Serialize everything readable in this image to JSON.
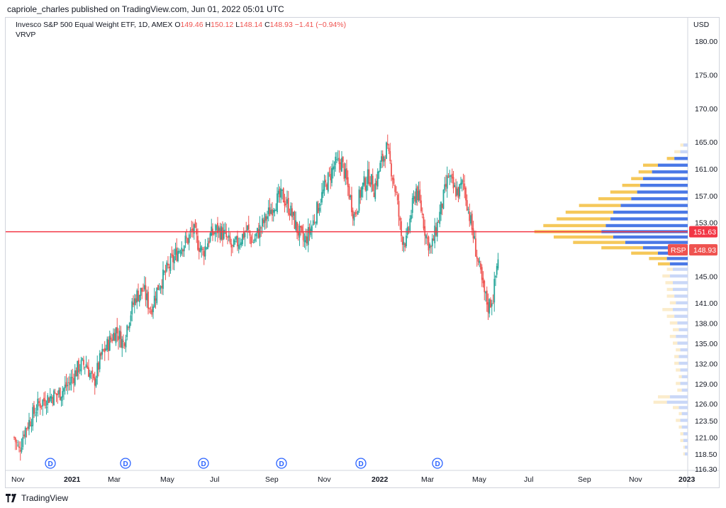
{
  "header": {
    "published_by": "capriole_charles published on TradingView.com, Jun 01, 2022 05:01 UTC"
  },
  "legend": {
    "symbol_desc": "Invesco S&P 500 Equal Weight ETF, 1D, AMEX",
    "o_label": "O",
    "o_value": "149.46",
    "h_label": "H",
    "h_value": "150.12",
    "l_label": "L",
    "l_value": "148.14",
    "c_label": "C",
    "c_value": "148.93",
    "change": "−1.41 (−0.94%)",
    "indicator": "VRVP"
  },
  "price_axis": {
    "currency": "USD",
    "ticks": [
      "180.00",
      "175.00",
      "170.00",
      "165.00",
      "161.00",
      "157.00",
      "153.00",
      "149.00",
      "145.00",
      "141.00",
      "138.00",
      "135.00",
      "132.00",
      "129.00",
      "126.00",
      "123.50",
      "121.00",
      "118.50",
      "116.30"
    ]
  },
  "time_axis": {
    "labels": [
      "Nov",
      "2021",
      "Mar",
      "May",
      "Jul",
      "Sep",
      "Nov",
      "2022",
      "Mar",
      "May",
      "Jul",
      "Sep",
      "Nov",
      "2023"
    ]
  },
  "badges": {
    "poc_price": "151.63",
    "symbol": "RSP",
    "last_price": "148.93"
  },
  "dividend_marker_label": "D",
  "footer": {
    "brand": "TradingView"
  },
  "colors": {
    "up": "#26a69a",
    "down": "#ef5350",
    "poc_line": "#f23645",
    "vp_up_va": "#4a78e6",
    "vp_down_va": "#f5c85a",
    "vp_up": "#c9d7f7",
    "vp_down": "#fbeccb"
  },
  "chart_data": {
    "type": "candlestick",
    "title": "Invesco S&P 500 Equal Weight ETF, 1D, AMEX",
    "ylabel": "USD",
    "ylim": [
      116.3,
      183.5
    ],
    "x_tick_labels": [
      "Nov",
      "2021",
      "Mar",
      "May",
      "Jul",
      "Sep",
      "Nov",
      "2022",
      "Mar",
      "May",
      "Jul",
      "Sep",
      "Nov",
      "2023"
    ],
    "price_path": [
      [
        0,
        121
      ],
      [
        2,
        119
      ],
      [
        4,
        122
      ],
      [
        7,
        124
      ],
      [
        10,
        126
      ],
      [
        14,
        127
      ],
      [
        18,
        127.5
      ],
      [
        22,
        129
      ],
      [
        26,
        131.5
      ],
      [
        29,
        132
      ],
      [
        32,
        129
      ],
      [
        35,
        133
      ],
      [
        38,
        135
      ],
      [
        41,
        137
      ],
      [
        44,
        135
      ],
      [
        46,
        138.5
      ],
      [
        49,
        142
      ],
      [
        52,
        143
      ],
      [
        55,
        140
      ],
      [
        58,
        143.5
      ],
      [
        61,
        145.5
      ],
      [
        64,
        147.5
      ],
      [
        67,
        149.5
      ],
      [
        70,
        150.5
      ],
      [
        72,
        152
      ],
      [
        74,
        150
      ],
      [
        76,
        148.5
      ],
      [
        79,
        151
      ],
      [
        82,
        152
      ],
      [
        85,
        151
      ],
      [
        88,
        149
      ],
      [
        91,
        150.5
      ],
      [
        94,
        152
      ],
      [
        96,
        150
      ],
      [
        99,
        152
      ],
      [
        102,
        154
      ],
      [
        105,
        156
      ],
      [
        108,
        157
      ],
      [
        111,
        155
      ],
      [
        114,
        152
      ],
      [
        117,
        150
      ],
      [
        120,
        152.5
      ],
      [
        123,
        156
      ],
      [
        126,
        159
      ],
      [
        129,
        161.5
      ],
      [
        132,
        162
      ],
      [
        134,
        159
      ],
      [
        137,
        154
      ],
      [
        140,
        158
      ],
      [
        143,
        160
      ],
      [
        145,
        158
      ],
      [
        148,
        162
      ],
      [
        150,
        164
      ],
      [
        152,
        161
      ],
      [
        154,
        157
      ],
      [
        156,
        151
      ],
      [
        158,
        150
      ],
      [
        160,
        154.5
      ],
      [
        162,
        158
      ],
      [
        164,
        155
      ],
      [
        166,
        151
      ],
      [
        168,
        149
      ],
      [
        170,
        152
      ],
      [
        172,
        155
      ],
      [
        175,
        160
      ],
      [
        177,
        158
      ],
      [
        179,
        157.5
      ],
      [
        181,
        159
      ],
      [
        183,
        155
      ],
      [
        185,
        151
      ],
      [
        187,
        147
      ],
      [
        189,
        143
      ],
      [
        191,
        140.5
      ],
      [
        193,
        142
      ],
      [
        195,
        148
      ]
    ],
    "volume_profile": {
      "poc": 151.63,
      "last": 148.93,
      "levels": [
        {
          "p": 164.5,
          "up": 0.03,
          "down": 0.02,
          "va": false
        },
        {
          "p": 163.5,
          "up": 0.05,
          "down": 0.04,
          "va": false
        },
        {
          "p": 162.5,
          "up": 0.09,
          "down": 0.05,
          "va": true
        },
        {
          "p": 161.5,
          "up": 0.2,
          "down": 0.1,
          "va": true
        },
        {
          "p": 160.5,
          "up": 0.24,
          "down": 0.09,
          "va": true
        },
        {
          "p": 159.5,
          "up": 0.3,
          "down": 0.08,
          "va": true
        },
        {
          "p": 158.5,
          "up": 0.32,
          "down": 0.12,
          "va": true
        },
        {
          "p": 157.5,
          "up": 0.34,
          "down": 0.18,
          "va": true
        },
        {
          "p": 156.5,
          "up": 0.38,
          "down": 0.22,
          "va": true
        },
        {
          "p": 155.5,
          "up": 0.45,
          "down": 0.28,
          "va": true
        },
        {
          "p": 154.5,
          "up": 0.5,
          "down": 0.32,
          "va": true
        },
        {
          "p": 153.5,
          "up": 0.52,
          "down": 0.36,
          "va": true
        },
        {
          "p": 152.5,
          "up": 0.55,
          "down": 0.42,
          "va": true
        },
        {
          "p": 151.6,
          "up": 0.58,
          "down": 0.45,
          "va": true
        },
        {
          "p": 150.8,
          "up": 0.5,
          "down": 0.4,
          "va": true
        },
        {
          "p": 150.0,
          "up": 0.42,
          "down": 0.35,
          "va": true
        },
        {
          "p": 149.2,
          "up": 0.3,
          "down": 0.28,
          "va": true
        },
        {
          "p": 148.4,
          "up": 0.2,
          "down": 0.18,
          "va": true
        },
        {
          "p": 147.6,
          "up": 0.14,
          "down": 0.12,
          "va": true
        },
        {
          "p": 146.8,
          "up": 0.12,
          "down": 0.08,
          "va": true
        },
        {
          "p": 146.0,
          "up": 0.1,
          "down": 0.04,
          "va": false
        },
        {
          "p": 145.0,
          "up": 0.12,
          "down": 0.05,
          "va": false
        },
        {
          "p": 144.0,
          "up": 0.1,
          "down": 0.05,
          "va": false
        },
        {
          "p": 143.0,
          "up": 0.1,
          "down": 0.04,
          "va": false
        },
        {
          "p": 142.0,
          "up": 0.09,
          "down": 0.05,
          "va": false
        },
        {
          "p": 141.0,
          "up": 0.08,
          "down": 0.04,
          "va": false
        },
        {
          "p": 140.0,
          "up": 0.1,
          "down": 0.07,
          "va": false
        },
        {
          "p": 139.0,
          "up": 0.09,
          "down": 0.05,
          "va": false
        },
        {
          "p": 138.0,
          "up": 0.07,
          "down": 0.05,
          "va": false
        },
        {
          "p": 137.0,
          "up": 0.06,
          "down": 0.04,
          "va": false
        },
        {
          "p": 136.0,
          "up": 0.08,
          "down": 0.04,
          "va": false
        },
        {
          "p": 135.0,
          "up": 0.07,
          "down": 0.03,
          "va": false
        },
        {
          "p": 134.0,
          "up": 0.05,
          "down": 0.03,
          "va": false
        },
        {
          "p": 133.0,
          "up": 0.06,
          "down": 0.03,
          "va": false
        },
        {
          "p": 132.0,
          "up": 0.06,
          "down": 0.03,
          "va": false
        },
        {
          "p": 131.0,
          "up": 0.05,
          "down": 0.03,
          "va": false
        },
        {
          "p": 130.0,
          "up": 0.04,
          "down": 0.02,
          "va": false
        },
        {
          "p": 129.0,
          "up": 0.05,
          "down": 0.03,
          "va": false
        },
        {
          "p": 128.0,
          "up": 0.04,
          "down": 0.03,
          "va": false
        },
        {
          "p": 127.0,
          "up": 0.12,
          "down": 0.08,
          "va": false
        },
        {
          "p": 126.2,
          "up": 0.14,
          "down": 0.09,
          "va": false
        },
        {
          "p": 125.4,
          "up": 0.06,
          "down": 0.04,
          "va": false
        },
        {
          "p": 124.5,
          "up": 0.04,
          "down": 0.02,
          "va": false
        },
        {
          "p": 123.5,
          "up": 0.05,
          "down": 0.03,
          "va": false
        },
        {
          "p": 122.5,
          "up": 0.04,
          "down": 0.02,
          "va": false
        },
        {
          "p": 121.5,
          "up": 0.03,
          "down": 0.02,
          "va": false
        },
        {
          "p": 120.5,
          "up": 0.03,
          "down": 0.02,
          "va": false
        },
        {
          "p": 119.5,
          "up": 0.02,
          "down": 0.01,
          "va": false
        },
        {
          "p": 118.5,
          "up": 0.02,
          "down": 0.01,
          "va": false
        }
      ]
    }
  }
}
